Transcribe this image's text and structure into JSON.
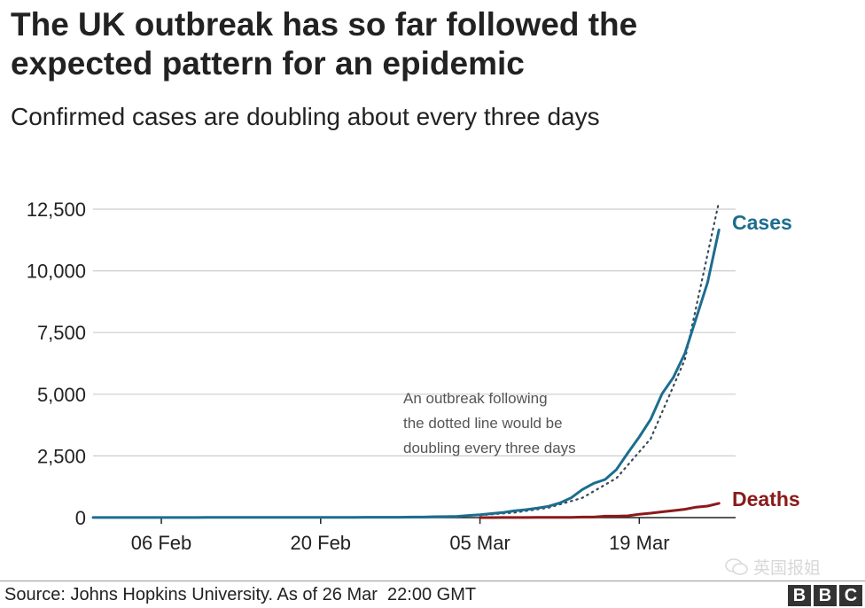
{
  "title_lines": [
    "The UK outbreak has so far followed the",
    "expected pattern for an epidemic"
  ],
  "subtitle": "Confirmed cases are doubling about every three days",
  "annotation_lines": [
    "An outbreak following",
    "the dotted line would be",
    "doubling every three days"
  ],
  "source": "Source: Johns Hopkins University. As of 26 Mar  22:00 GMT",
  "watermark": "英国报姐",
  "logo_letters": [
    "B",
    "B",
    "C"
  ],
  "colors": {
    "cases": "#1c6d8e",
    "deaths": "#8b1a1a",
    "doubling": "#3a4a5a",
    "grid": "#cccccc",
    "axis": "#222222"
  },
  "chart_data": {
    "type": "line",
    "title": "The UK outbreak has so far followed the expected pattern for an epidemic",
    "subtitle": "Confirmed cases are doubling about every three days",
    "x_start": "2020-01-31",
    "xticks": [
      "06 Feb",
      "20 Feb",
      "05 Mar",
      "19 Mar"
    ],
    "yticks": [
      "0",
      "2,500",
      "5,000",
      "7,500",
      "10,000",
      "12,500"
    ],
    "ylim": [
      0,
      12500
    ],
    "grid": true,
    "series": [
      {
        "name": "Cases",
        "style": "solid",
        "x": [
          "31 Jan",
          "01 Feb",
          "02 Feb",
          "03 Feb",
          "04 Feb",
          "05 Feb",
          "06 Feb",
          "07 Feb",
          "08 Feb",
          "09 Feb",
          "10 Feb",
          "11 Feb",
          "12 Feb",
          "13 Feb",
          "14 Feb",
          "15 Feb",
          "16 Feb",
          "17 Feb",
          "18 Feb",
          "19 Feb",
          "20 Feb",
          "21 Feb",
          "22 Feb",
          "23 Feb",
          "24 Feb",
          "25 Feb",
          "26 Feb",
          "27 Feb",
          "28 Feb",
          "29 Feb",
          "01 Mar",
          "02 Mar",
          "03 Mar",
          "04 Mar",
          "05 Mar",
          "06 Mar",
          "07 Mar",
          "08 Mar",
          "09 Mar",
          "10 Mar",
          "11 Mar",
          "12 Mar",
          "13 Mar",
          "14 Mar",
          "15 Mar",
          "16 Mar",
          "17 Mar",
          "18 Mar",
          "19 Mar",
          "20 Mar",
          "21 Mar",
          "22 Mar",
          "23 Mar",
          "24 Mar",
          "25 Mar",
          "26 Mar"
        ],
        "y": [
          2,
          2,
          2,
          2,
          2,
          2,
          3,
          3,
          3,
          3,
          8,
          8,
          9,
          9,
          9,
          9,
          9,
          9,
          9,
          9,
          9,
          9,
          9,
          9,
          13,
          13,
          13,
          15,
          20,
          23,
          36,
          40,
          51,
          85,
          115,
          163,
          206,
          273,
          321,
          382,
          456,
          590,
          798,
          1140,
          1391,
          1543,
          1950,
          2626,
          3269,
          3983,
          5018,
          5683,
          6650,
          8077,
          9529,
          11658
        ]
      },
      {
        "name": "Deaths",
        "style": "solid",
        "x": [
          "05 Mar",
          "06 Mar",
          "07 Mar",
          "08 Mar",
          "09 Mar",
          "10 Mar",
          "11 Mar",
          "12 Mar",
          "13 Mar",
          "14 Mar",
          "15 Mar",
          "16 Mar",
          "17 Mar",
          "18 Mar",
          "19 Mar",
          "20 Mar",
          "21 Mar",
          "22 Mar",
          "23 Mar",
          "24 Mar",
          "25 Mar",
          "26 Mar"
        ],
        "y": [
          1,
          1,
          2,
          2,
          3,
          6,
          8,
          8,
          8,
          21,
          21,
          56,
          56,
          72,
          138,
          178,
          234,
          282,
          336,
          423,
          466,
          578
        ]
      },
      {
        "name": "Doubling every three days",
        "style": "dotted",
        "x": [
          "05 Mar",
          "08 Mar",
          "11 Mar",
          "14 Mar",
          "17 Mar",
          "20 Mar",
          "23 Mar",
          "26 Mar"
        ],
        "y": [
          100,
          200,
          400,
          800,
          1600,
          3200,
          6400,
          12800
        ]
      }
    ],
    "annotations": [
      "An outbreak following the dotted line would be doubling every three days"
    ]
  }
}
